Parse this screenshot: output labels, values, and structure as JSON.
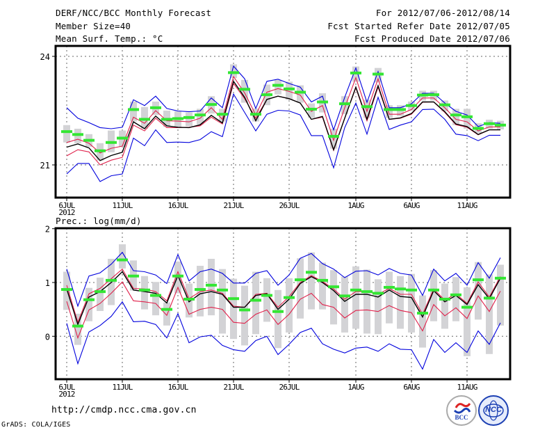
{
  "header": {
    "title": "DERF/NCC/BCC Monthly Forecast",
    "member_size": "Member Size=40",
    "variable": "Mean Surf. Temp.: °C",
    "period": "For 2012/07/06-2012/08/14",
    "started": "Fcst Started Refer Date 2012/07/05",
    "produced": "Fcst Produced Date 2012/07/06"
  },
  "footer": {
    "url": "http://cmdp.ncc.cma.gov.cn",
    "credit": "GrADS: COLA/IGES",
    "logos": [
      {
        "name": "bcc-logo",
        "label": "BCC"
      },
      {
        "name": "ncc-logo",
        "label": "NCC"
      }
    ]
  },
  "colors": {
    "observed": "#33e633",
    "ensemble_mean": "#000000",
    "spread": "#e0204a",
    "extremes": "#0000dd",
    "members_box": "#d3d3d6",
    "grid": "#666666"
  },
  "chart_data": [
    {
      "type": "line",
      "id": "temperature",
      "title": "",
      "ylabel": "Mean Surf. Temp.: °C",
      "ylim": [
        20.0,
        24.3
      ],
      "yticks": [
        21,
        24
      ],
      "xtick_labels": [
        {
          "index": 0,
          "label": "6JUL",
          "sub": "2012"
        },
        {
          "index": 5,
          "label": "11JUL"
        },
        {
          "index": 10,
          "label": "16JUL"
        },
        {
          "index": 15,
          "label": "21JUL"
        },
        {
          "index": 20,
          "label": "26JUL"
        },
        {
          "index": 26,
          "label": "1AUG"
        },
        {
          "index": 31,
          "label": "6AUG"
        },
        {
          "index": 36,
          "label": "11AUG"
        }
      ],
      "grid": true,
      "n_days": 40,
      "series": [
        {
          "name": "max",
          "kind": "extreme",
          "values": [
            22.58,
            22.29,
            22.17,
            22.03,
            22.0,
            22.04,
            22.8,
            22.64,
            22.9,
            22.56,
            22.49,
            22.47,
            22.49,
            22.85,
            22.58,
            23.73,
            23.38,
            22.56,
            23.31,
            23.37,
            23.25,
            23.15,
            22.74,
            22.9,
            21.97,
            22.87,
            23.68,
            22.73,
            23.58,
            22.58,
            22.58,
            22.69,
            22.98,
            22.98,
            22.71,
            22.48,
            22.38,
            22.06,
            22.17,
            22.15
          ]
        },
        {
          "name": "upper",
          "kind": "spread",
          "values": [
            21.62,
            21.71,
            21.6,
            21.33,
            21.46,
            21.52,
            22.32,
            22.15,
            22.5,
            22.22,
            22.21,
            22.19,
            22.29,
            22.58,
            22.26,
            23.44,
            22.99,
            22.38,
            23.01,
            23.11,
            23.03,
            22.93,
            22.48,
            22.64,
            21.68,
            22.58,
            23.41,
            22.48,
            23.38,
            22.4,
            22.4,
            22.53,
            22.85,
            22.85,
            22.58,
            22.26,
            22.19,
            21.94,
            22.05,
            22.05
          ]
        },
        {
          "name": "mean",
          "kind": "mean",
          "values": [
            21.49,
            21.58,
            21.47,
            21.12,
            21.26,
            21.35,
            22.19,
            22.0,
            22.35,
            22.08,
            22.04,
            22.03,
            22.11,
            22.37,
            22.16,
            23.31,
            22.87,
            22.22,
            22.81,
            22.9,
            22.83,
            22.71,
            22.26,
            22.34,
            21.42,
            22.29,
            23.15,
            22.26,
            23.19,
            22.26,
            22.3,
            22.42,
            22.74,
            22.74,
            22.47,
            22.13,
            22.06,
            21.84,
            21.97,
            21.97
          ]
        },
        {
          "name": "lower",
          "kind": "spread",
          "values": [
            21.25,
            21.42,
            21.36,
            21.0,
            21.13,
            21.21,
            22.1,
            21.94,
            22.29,
            22.03,
            22.03,
            22.04,
            22.08,
            22.32,
            22.13,
            23.25,
            22.83,
            22.29,
            22.81,
            22.9,
            22.83,
            22.71,
            22.26,
            22.32,
            21.4,
            22.29,
            23.13,
            22.22,
            23.15,
            22.26,
            22.29,
            22.4,
            22.73,
            22.74,
            22.45,
            22.11,
            22.04,
            21.83,
            21.97,
            21.97
          ]
        },
        {
          "name": "min",
          "kind": "extreme",
          "values": [
            20.75,
            21.04,
            21.04,
            20.54,
            20.7,
            20.75,
            21.74,
            21.53,
            21.97,
            21.62,
            21.63,
            21.62,
            21.7,
            21.92,
            21.78,
            22.96,
            22.45,
            21.94,
            22.4,
            22.51,
            22.49,
            22.38,
            21.81,
            21.81,
            20.92,
            22.03,
            22.71,
            21.85,
            22.87,
            21.98,
            22.1,
            22.19,
            22.53,
            22.54,
            22.26,
            21.85,
            21.81,
            21.67,
            21.82,
            21.82
          ]
        },
        {
          "name": "observed",
          "kind": "marker",
          "values": [
            21.92,
            21.84,
            21.68,
            21.39,
            21.62,
            21.74,
            22.53,
            22.26,
            22.58,
            22.26,
            22.28,
            22.31,
            22.38,
            22.67,
            22.4,
            23.55,
            23.09,
            22.4,
            22.94,
            23.2,
            23.1,
            23.01,
            22.54,
            22.74,
            21.79,
            22.69,
            23.54,
            22.61,
            23.51,
            22.53,
            22.53,
            22.64,
            22.93,
            22.94,
            22.66,
            22.38,
            22.33,
            22.01,
            22.14,
            22.1
          ]
        },
        {
          "name": "members_box_high",
          "kind": "box_high",
          "values": [
            22.1,
            22.0,
            21.85,
            21.6,
            21.95,
            21.95,
            22.75,
            22.6,
            22.75,
            22.5,
            22.48,
            22.45,
            22.55,
            22.9,
            22.55,
            23.78,
            23.35,
            22.56,
            23.22,
            23.35,
            23.3,
            23.2,
            22.7,
            22.98,
            22.0,
            22.9,
            23.72,
            22.8,
            23.68,
            22.65,
            22.65,
            22.75,
            23.05,
            23.05,
            22.78,
            22.55,
            22.55,
            22.15,
            22.25,
            22.22
          ]
        },
        {
          "name": "members_box_low",
          "kind": "box_low",
          "values": [
            21.62,
            21.6,
            21.5,
            21.12,
            21.35,
            21.5,
            22.2,
            22.0,
            22.38,
            22.05,
            22.02,
            22.07,
            22.12,
            22.42,
            22.2,
            23.4,
            22.72,
            22.2,
            22.65,
            22.95,
            22.8,
            22.72,
            22.3,
            22.45,
            21.45,
            22.4,
            23.3,
            22.3,
            23.28,
            22.3,
            22.35,
            22.5,
            22.78,
            22.78,
            22.48,
            22.1,
            22.0,
            21.88,
            22.0,
            21.98
          ]
        }
      ]
    },
    {
      "type": "line",
      "id": "precipitation",
      "title": "Prec.: log(mm/d)",
      "ylabel": "Prec.: log(mm/d)",
      "ylim": [
        -0.8,
        2.0
      ],
      "yticks": [
        0,
        1,
        2
      ],
      "xtick_labels": [
        {
          "index": 0,
          "label": "6JUL",
          "sub": "2012"
        },
        {
          "index": 5,
          "label": "11JUL"
        },
        {
          "index": 10,
          "label": "16JUL"
        },
        {
          "index": 15,
          "label": "21JUL"
        },
        {
          "index": 20,
          "label": "26JUL"
        },
        {
          "index": 26,
          "label": "1AUG"
        },
        {
          "index": 31,
          "label": "6AUG"
        },
        {
          "index": 36,
          "label": "11AUG"
        }
      ],
      "grid": true,
      "n_days": 40,
      "series": [
        {
          "name": "max",
          "kind": "extreme",
          "values": [
            1.25,
            0.56,
            1.12,
            1.18,
            1.34,
            1.56,
            1.22,
            1.2,
            1.14,
            0.98,
            1.52,
            1.03,
            1.2,
            1.25,
            1.17,
            0.99,
            0.99,
            1.17,
            1.22,
            0.95,
            1.14,
            1.45,
            1.54,
            1.35,
            1.25,
            1.09,
            1.21,
            1.22,
            1.14,
            1.26,
            1.17,
            1.14,
            0.76,
            1.25,
            1.03,
            1.17,
            0.95,
            1.37,
            1.08,
            1.46
          ]
        },
        {
          "name": "upper",
          "kind": "spread",
          "values": [
            0.95,
            0.26,
            0.79,
            0.89,
            1.07,
            1.25,
            0.89,
            0.88,
            0.83,
            0.66,
            1.2,
            0.7,
            0.83,
            0.86,
            0.8,
            0.56,
            0.54,
            0.78,
            0.8,
            0.54,
            0.74,
            1.0,
            1.13,
            1.02,
            0.88,
            0.69,
            0.83,
            0.83,
            0.78,
            0.89,
            0.78,
            0.78,
            0.41,
            0.88,
            0.67,
            0.79,
            0.61,
            1.01,
            0.73,
            1.11
          ]
        },
        {
          "name": "mean",
          "kind": "mean",
          "values": [
            0.88,
            0.22,
            0.73,
            0.83,
            1.0,
            1.2,
            0.86,
            0.83,
            0.8,
            0.62,
            1.13,
            0.64,
            0.79,
            0.83,
            0.78,
            0.54,
            0.54,
            0.76,
            0.79,
            0.5,
            0.69,
            0.98,
            1.11,
            1.0,
            0.85,
            0.65,
            0.78,
            0.78,
            0.73,
            0.86,
            0.74,
            0.72,
            0.36,
            0.85,
            0.64,
            0.76,
            0.59,
            0.96,
            0.7,
            1.08
          ]
        },
        {
          "name": "lower",
          "kind": "spread",
          "values": [
            0.65,
            -0.03,
            0.49,
            0.61,
            0.8,
            1.01,
            0.66,
            0.64,
            0.61,
            0.39,
            0.91,
            0.41,
            0.5,
            0.54,
            0.5,
            0.26,
            0.24,
            0.41,
            0.49,
            0.22,
            0.41,
            0.69,
            0.8,
            0.59,
            0.54,
            0.34,
            0.48,
            0.49,
            0.46,
            0.57,
            0.48,
            0.44,
            0.1,
            0.59,
            0.38,
            0.53,
            0.33,
            0.75,
            0.46,
            0.84
          ]
        },
        {
          "name": "min",
          "kind": "extreme",
          "values": [
            0.24,
            -0.51,
            0.08,
            0.2,
            0.37,
            0.64,
            0.27,
            0.28,
            0.22,
            -0.03,
            0.42,
            -0.12,
            -0.01,
            0.02,
            -0.17,
            -0.25,
            -0.28,
            -0.08,
            0.0,
            -0.34,
            -0.15,
            0.07,
            0.15,
            -0.14,
            -0.24,
            -0.31,
            -0.22,
            -0.2,
            -0.28,
            -0.14,
            -0.24,
            -0.25,
            -0.61,
            -0.06,
            -0.3,
            -0.12,
            -0.3,
            0.1,
            -0.15,
            0.25
          ]
        },
        {
          "name": "observed",
          "kind": "marker",
          "values": [
            0.87,
            0.19,
            0.68,
            0.83,
            1.04,
            1.42,
            1.12,
            0.86,
            0.76,
            0.5,
            1.12,
            0.69,
            0.87,
            0.95,
            0.86,
            0.7,
            0.49,
            0.67,
            0.76,
            0.46,
            0.72,
            1.05,
            1.19,
            1.04,
            0.92,
            0.75,
            0.86,
            0.83,
            0.8,
            0.91,
            0.88,
            0.86,
            0.43,
            0.86,
            0.69,
            0.77,
            0.54,
            1.05,
            0.71,
            1.08
          ]
        },
        {
          "name": "members_box_high",
          "kind": "box_high",
          "values": [
            1.2,
            0.42,
            0.9,
            1.09,
            1.44,
            1.71,
            1.41,
            1.12,
            1.01,
            0.63,
            1.39,
            0.98,
            1.31,
            1.44,
            1.25,
            1.07,
            0.94,
            1.2,
            1.08,
            0.86,
            1.08,
            1.45,
            1.56,
            1.37,
            1.23,
            1.11,
            1.3,
            1.24,
            1.06,
            1.2,
            1.12,
            1.16,
            0.76,
            1.23,
            0.98,
            1.1,
            0.91,
            1.38,
            1.15,
            1.33
          ]
        },
        {
          "name": "members_box_low",
          "kind": "box_low",
          "values": [
            0.49,
            -0.16,
            0.28,
            0.47,
            0.58,
            1.26,
            0.85,
            0.5,
            0.39,
            0.2,
            0.8,
            0.35,
            0.37,
            0.39,
            0.05,
            -0.05,
            -0.17,
            0.04,
            0.27,
            -0.22,
            0.07,
            0.33,
            0.5,
            0.5,
            0.22,
            0.07,
            0.14,
            0.05,
            0.04,
            0.24,
            0.14,
            0.07,
            -0.21,
            0.28,
            0.14,
            0.28,
            -0.37,
            0.31,
            -0.33,
            0.2
          ]
        }
      ]
    }
  ]
}
